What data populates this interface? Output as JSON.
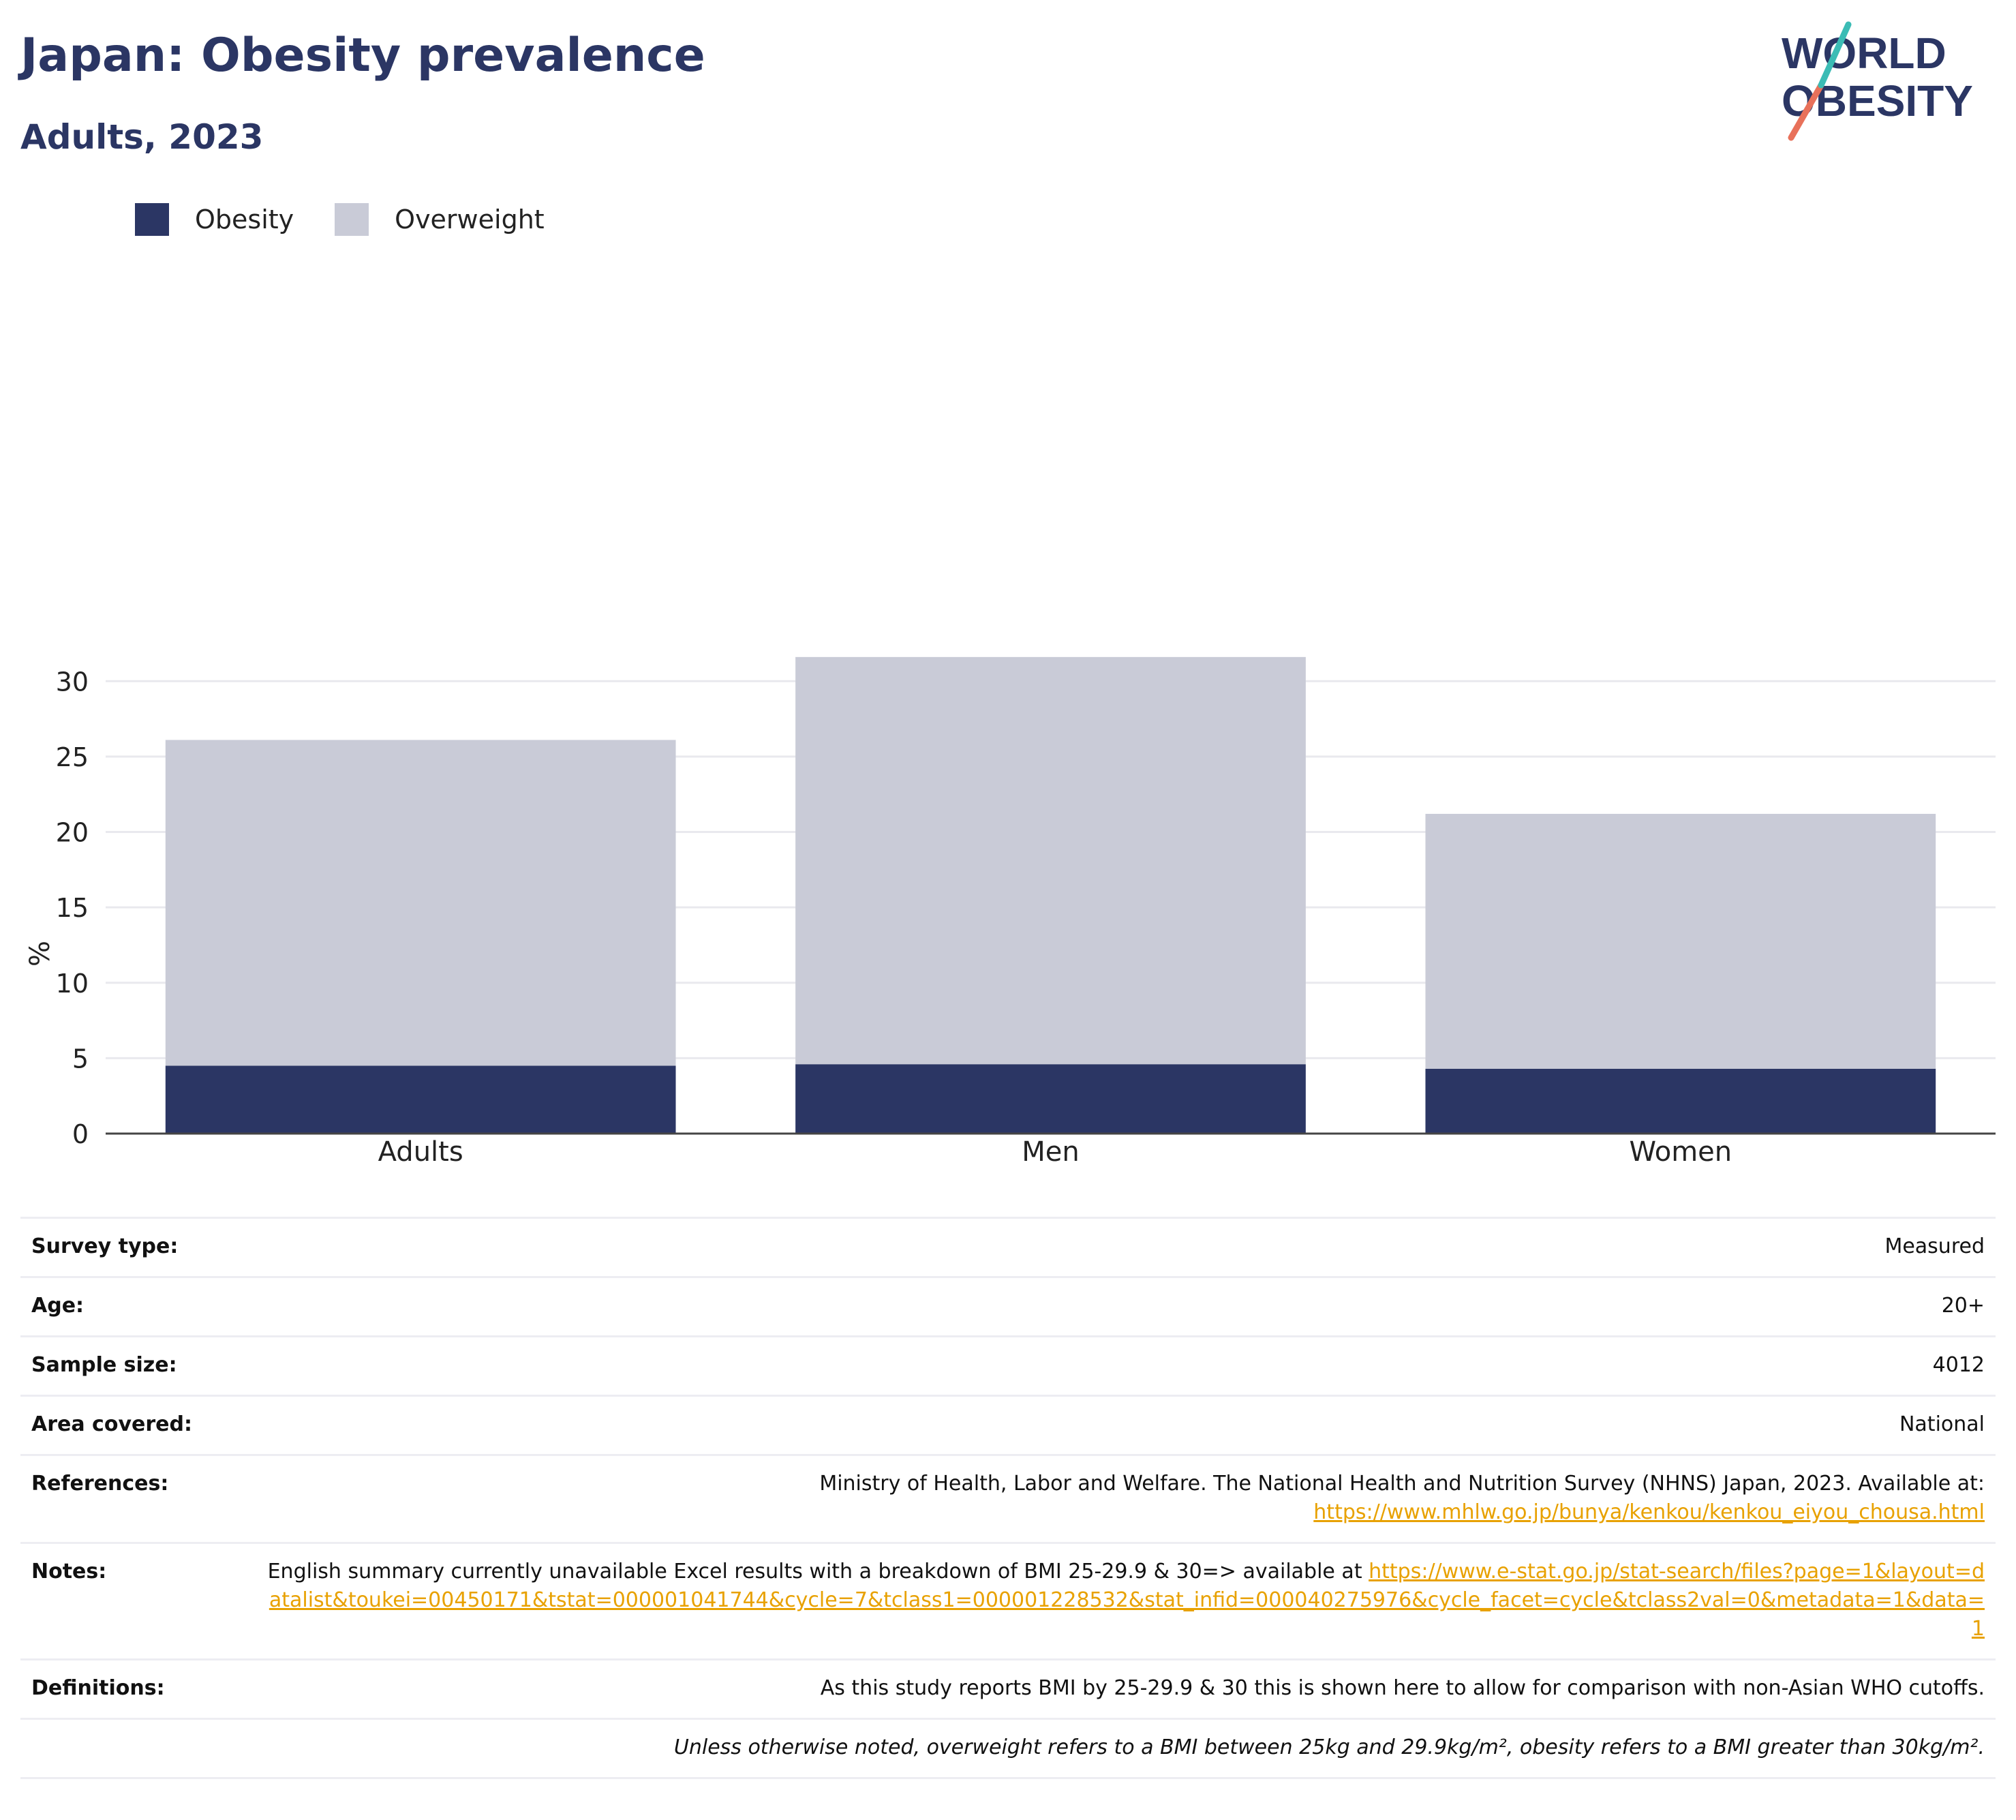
{
  "header": {
    "title": "Japan: Obesity prevalence",
    "subtitle": "Adults, 2023"
  },
  "logo": {
    "line1": "WORLD",
    "line2": "OBESITY"
  },
  "legend": [
    {
      "label": "Obesity",
      "color": "#2b3664"
    },
    {
      "label": "Overweight",
      "color": "#c9cbd7"
    }
  ],
  "chart_data": {
    "type": "bar",
    "stacked": true,
    "categories": [
      "Adults",
      "Men",
      "Women"
    ],
    "series": [
      {
        "name": "Obesity",
        "color": "#2b3664",
        "values": [
          4.5,
          4.6,
          4.3
        ]
      },
      {
        "name": "Overweight",
        "color": "#c9cbd7",
        "values": [
          21.6,
          27.0,
          16.9
        ]
      }
    ],
    "ylabel": "%",
    "ylim": [
      0,
      32
    ],
    "yticks": [
      0,
      5,
      10,
      15,
      20,
      25,
      30
    ],
    "grid": true,
    "legend_position": "top-left"
  },
  "info": {
    "rows": [
      {
        "label": "Survey type:",
        "value": "Measured"
      },
      {
        "label": "Age:",
        "value": "20+"
      },
      {
        "label": "Sample size:",
        "value": "4012"
      },
      {
        "label": "Area covered:",
        "value": "National"
      },
      {
        "label": "References:",
        "value": "Ministry of Health, Labor and Welfare. The National Health and Nutrition Survey (NHNS) Japan, 2023. Available at:",
        "link": "https://www.mhlw.go.jp/bunya/kenkou/kenkou_eiyou_chousa.html"
      },
      {
        "label": "Notes:",
        "value": "English summary currently unavailable Excel results with a breakdown of BMI 25-29.9 & 30=> available at",
        "link": "https://www.e-stat.go.jp/stat-search/files?page=1&layout=datalist&toukei=00450171&tstat=000001041744&cycle=7&tclass1=000001228532&stat_infid=000040275976&cycle_facet=cycle&tclass2val=0&metadata=1&data=1"
      },
      {
        "label": "Definitions:",
        "value": "As this study reports BMI by 25-29.9 & 30 this is shown here to allow for comparison with non-Asian WHO cutoffs."
      }
    ],
    "footnote": "Unless otherwise noted, overweight refers to a BMI between 25kg and 29.9kg/m², obesity refers to a BMI greater than 30kg/m²."
  }
}
